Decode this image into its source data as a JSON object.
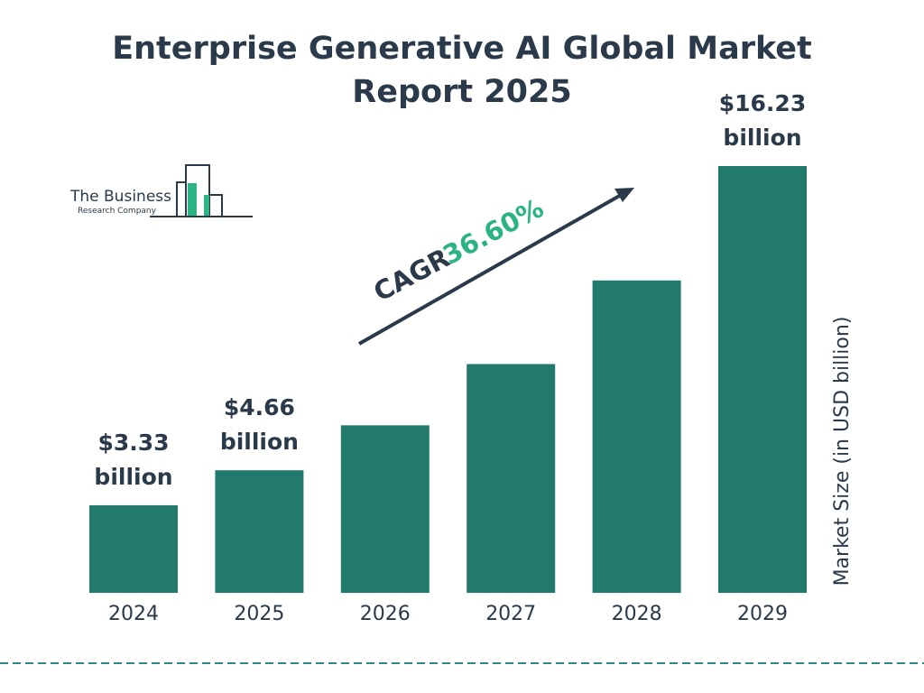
{
  "chart_data": {
    "type": "bar",
    "title": "Enterprise Generative AI Global Market Report 2025",
    "categories": [
      "2024",
      "2025",
      "2026",
      "2027",
      "2028",
      "2029"
    ],
    "values": [
      3.33,
      4.66,
      6.37,
      8.7,
      11.88,
      16.23
    ],
    "value_labels": [
      "$3.33 billion",
      "$4.66 billion",
      null,
      null,
      null,
      "$16.23 billion"
    ],
    "color": "#217a6b",
    "y_axis_label": "Market Size (in USD billion)",
    "annotation": "CAGR",
    "annotation_value": "36.60%",
    "logo": {
      "name": "The Business",
      "subname": "Research Company"
    }
  }
}
